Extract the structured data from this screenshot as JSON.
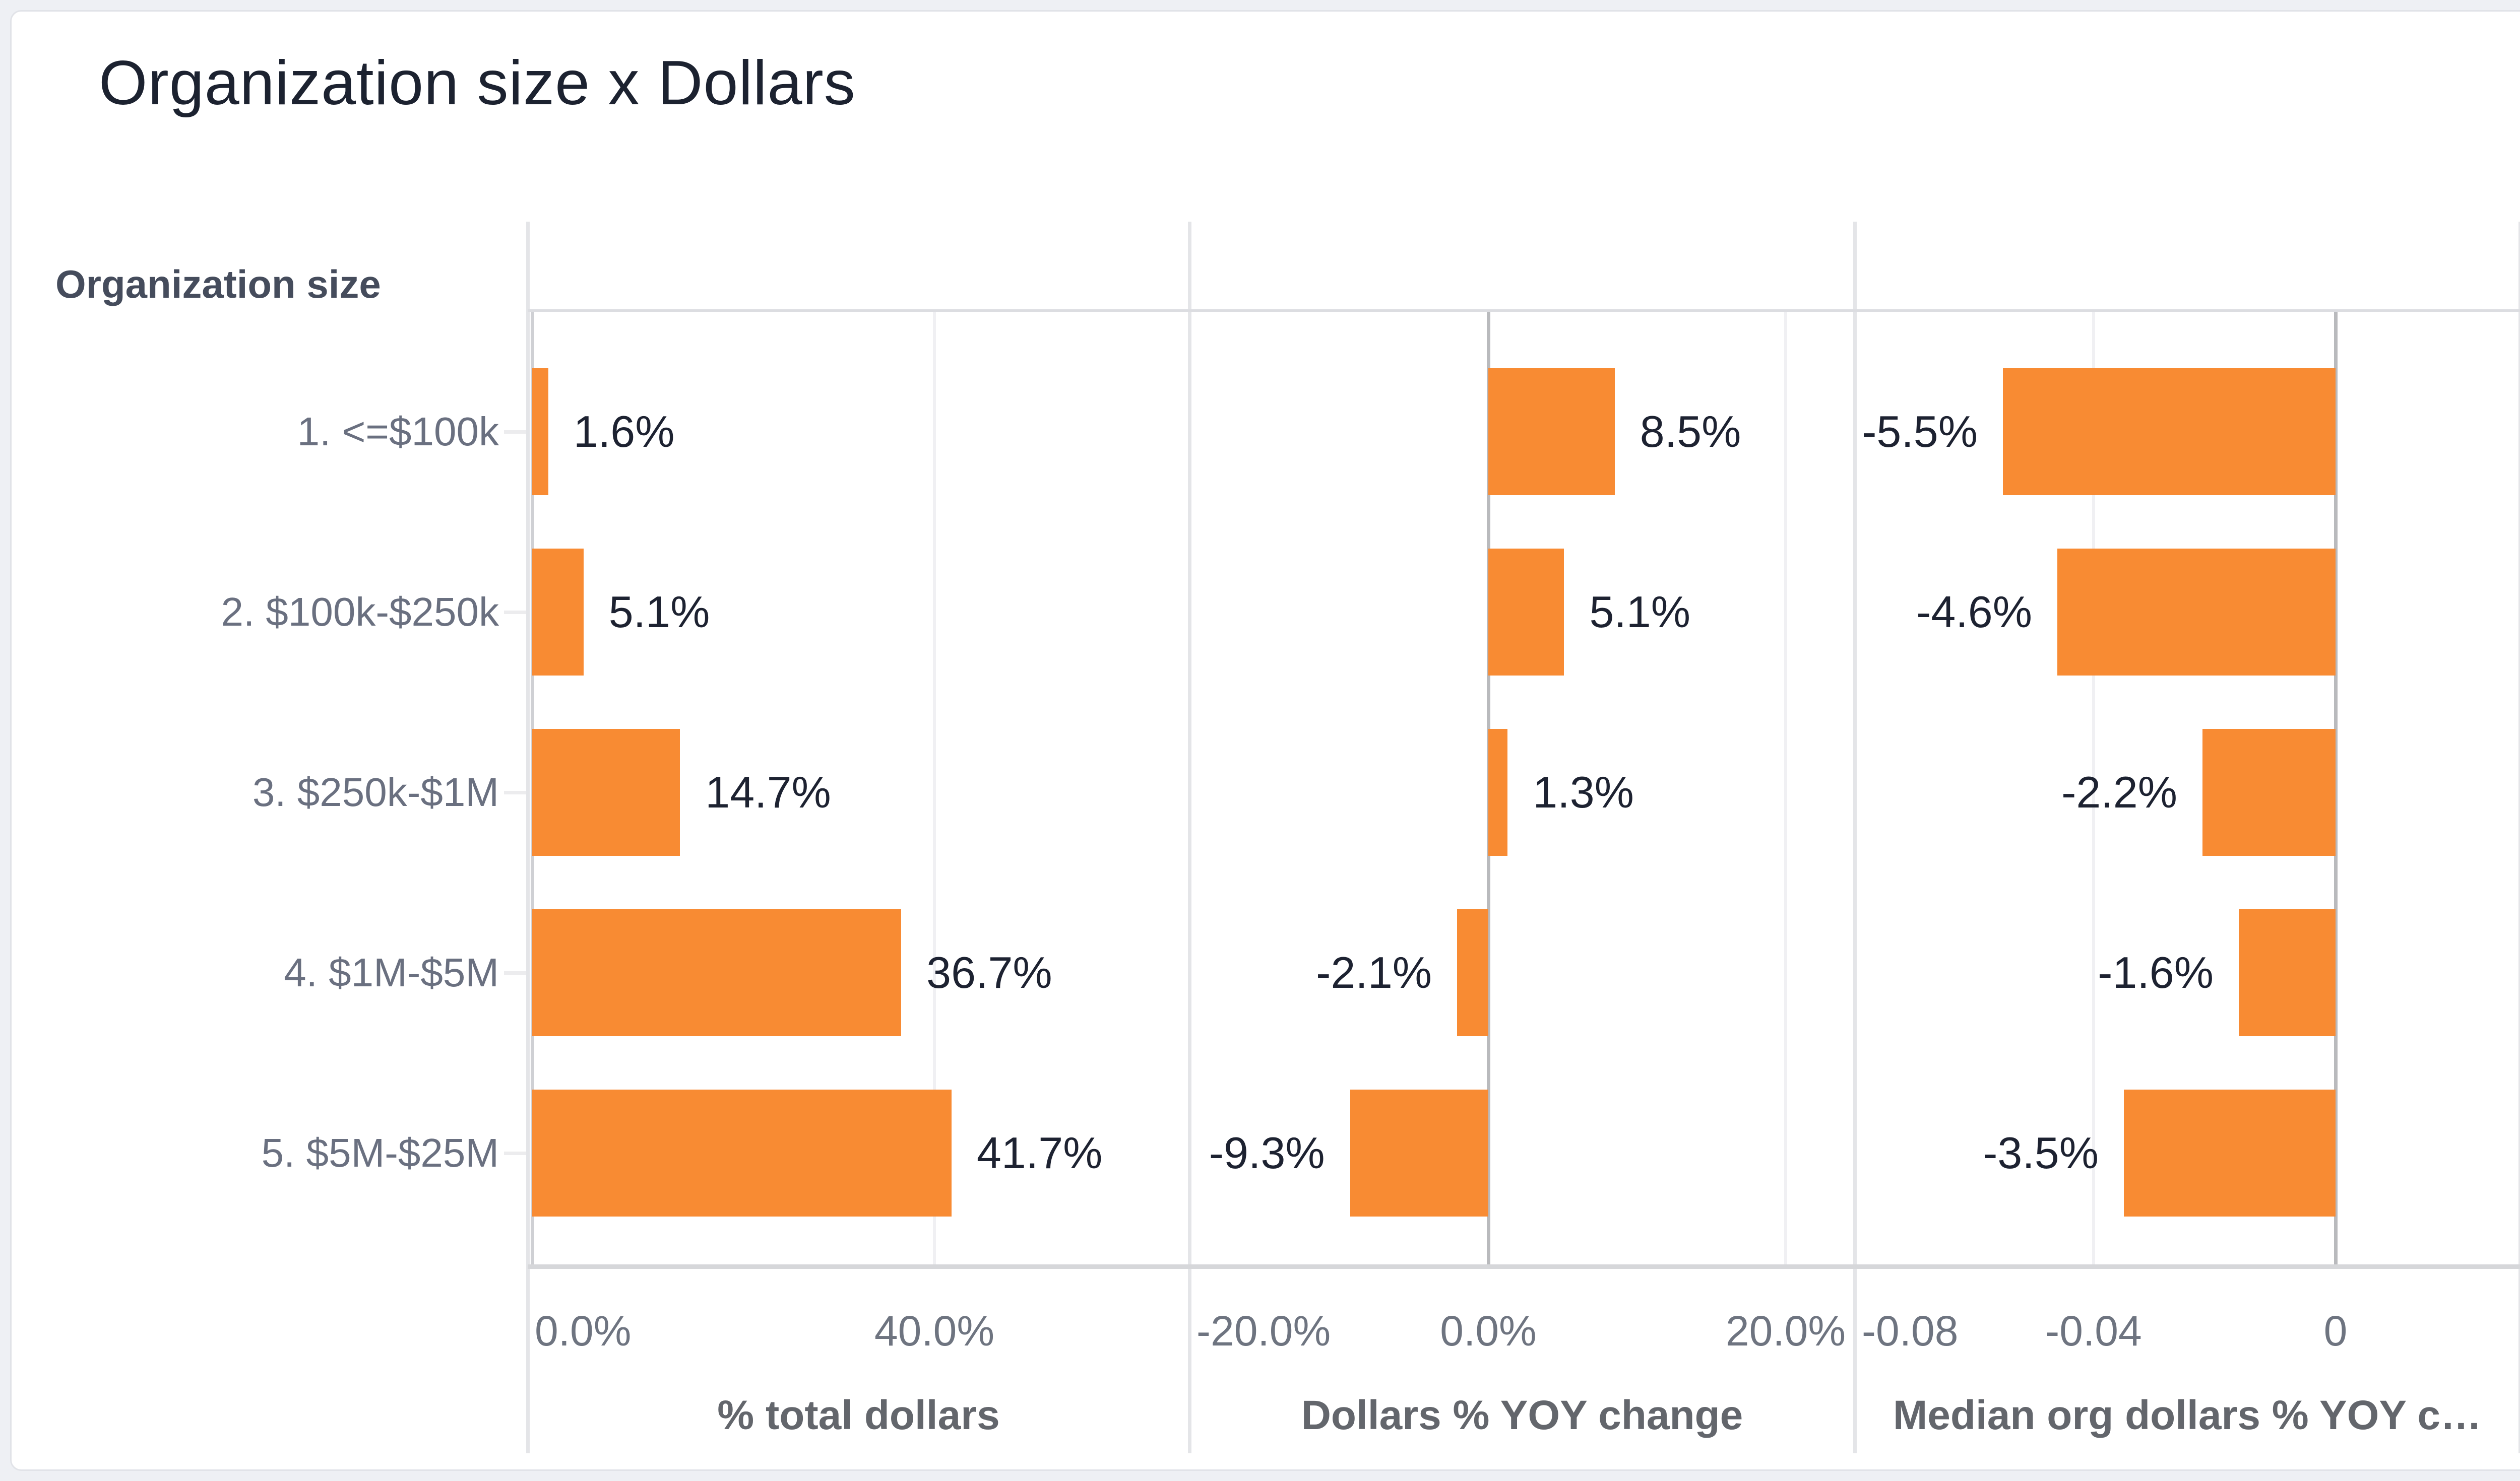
{
  "title": "Organization size x Dollars",
  "row_header_label": "Organization size",
  "colors": {
    "bar": "#F88B33",
    "title_text": "#1c2230",
    "value_text": "#1d2231",
    "axis_text": "#6e7480",
    "zero_axis": "#b9babd",
    "panel_border": "#e4e5e8"
  },
  "chart_data": {
    "type": "bar",
    "orientation": "horizontal",
    "title": "Organization size x Dollars",
    "row_axis_label": "Organization size",
    "categories": [
      "1. <=$100k",
      "2. $100k-$250k",
      "3. $250k-$1M",
      "4. $1M-$5M",
      "5. $5M-$25M"
    ],
    "grid": true,
    "legend": "none",
    "panels": [
      {
        "name": "% total dollars",
        "axis_ticks": [
          {
            "v": 0,
            "label": "0.0%",
            "clamp_left": true
          },
          {
            "v": 40,
            "label": "40.0%"
          }
        ],
        "gridlines": [
          40
        ],
        "zero_strong": false,
        "axis_range": [
          0,
          66
        ],
        "values": [
          1.6,
          5.1,
          14.7,
          36.7,
          41.7
        ],
        "labels": [
          "1.6%",
          "5.1%",
          "14.7%",
          "36.7%",
          "41.7%"
        ]
      },
      {
        "name": "Dollars % YOY change",
        "axis_ticks": [
          {
            "v": -20,
            "label": "-20.0%",
            "clamp_left": true
          },
          {
            "v": 0,
            "label": "0.0%"
          },
          {
            "v": 20,
            "label": "20.0%"
          }
        ],
        "gridlines": [
          20
        ],
        "zero_strong": true,
        "axis_range": [
          -20,
          24.6
        ],
        "values": [
          8.5,
          5.1,
          1.3,
          -2.1,
          -9.3
        ],
        "labels": [
          "8.5%",
          "5.1%",
          "1.3%",
          "-2.1%",
          "-9.3%"
        ]
      },
      {
        "name": "Median org dollars % YOY c…",
        "axis_ticks": [
          {
            "v": -0.08,
            "label": "-0.08",
            "clamp_left": true
          },
          {
            "v": -0.04,
            "label": "-0.04"
          },
          {
            "v": 0,
            "label": "0"
          }
        ],
        "gridlines": [
          -0.04
        ],
        "zero_strong": true,
        "axis_range": [
          -0.0796,
          0.0305
        ],
        "values": [
          -0.055,
          -0.046,
          -0.022,
          -0.016,
          -0.035
        ],
        "labels": [
          "-5.5%",
          "-4.6%",
          "-2.2%",
          "-1.6%",
          "-3.5%"
        ]
      }
    ]
  }
}
